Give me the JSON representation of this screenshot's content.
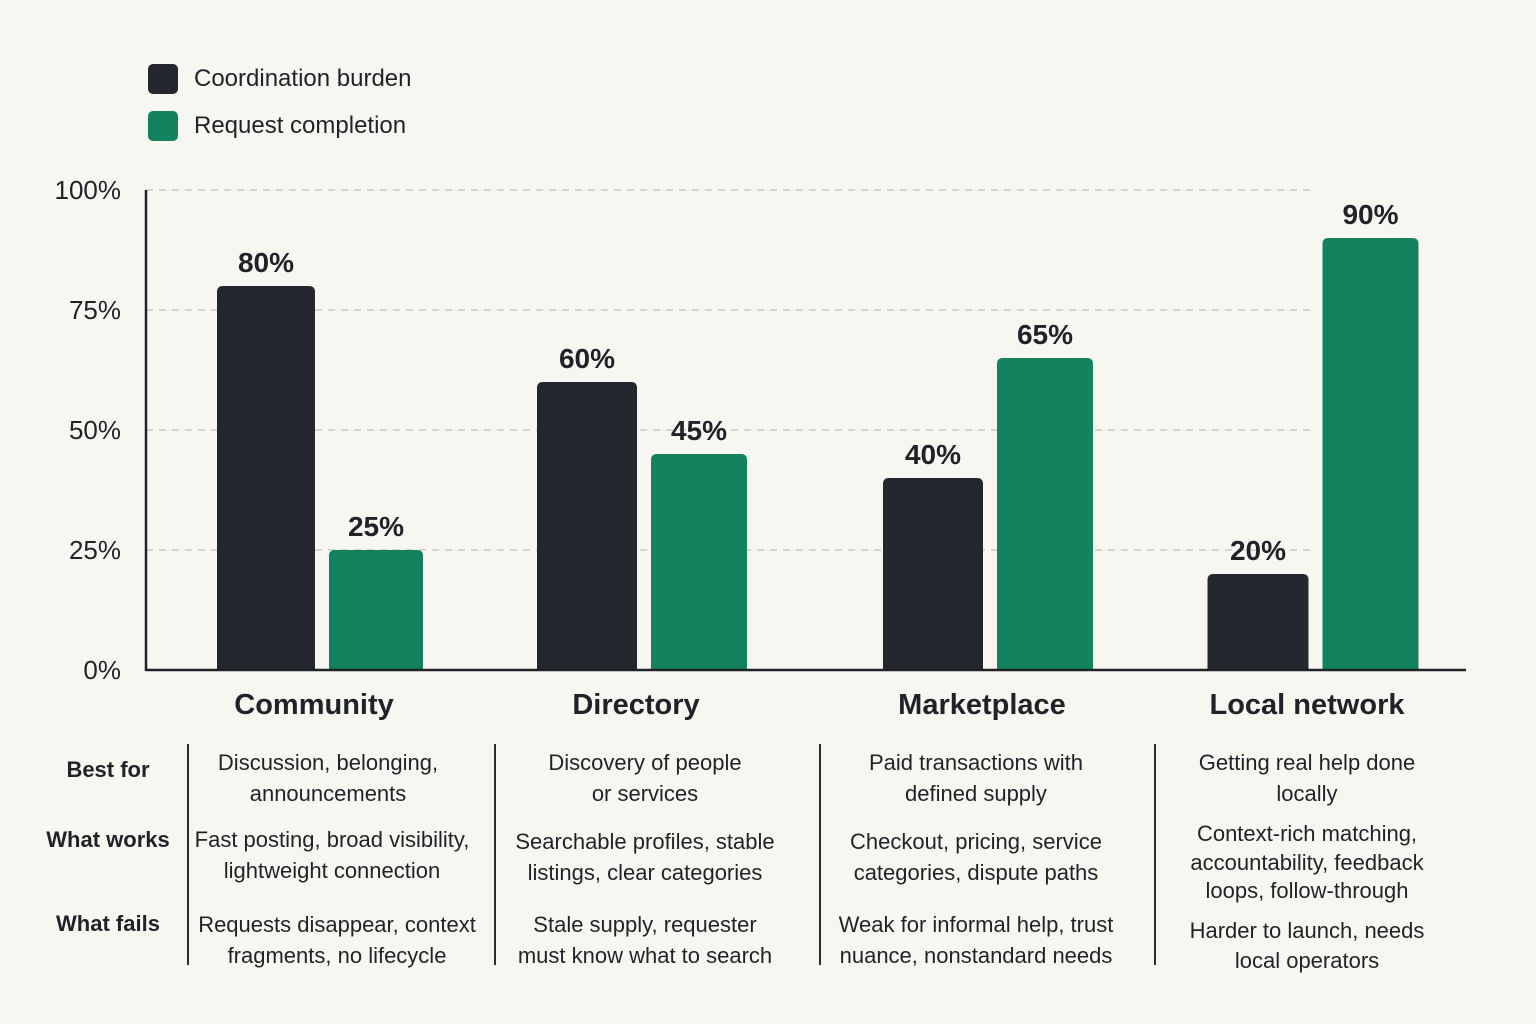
{
  "chart_data": {
    "type": "bar",
    "categories": [
      "Community",
      "Directory",
      "Marketplace",
      "Local network"
    ],
    "series": [
      {
        "name": "Coordination burden",
        "color": "#24282e",
        "values": [
          80,
          60,
          40,
          20
        ]
      },
      {
        "name": "Request completion",
        "color": "#12825f",
        "values": [
          25,
          45,
          65,
          90
        ]
      }
    ],
    "value_labels": [
      [
        "80%",
        "60%",
        "40%",
        "20%"
      ],
      [
        "25%",
        "45%",
        "65%",
        "90%"
      ]
    ],
    "y_ticks": [
      "0%",
      "25%",
      "50%",
      "75%",
      "100%"
    ],
    "ylim": [
      0,
      100
    ],
    "grid": true,
    "legend_position": "top-left",
    "title": "",
    "xlabel": "",
    "ylabel": ""
  },
  "table": {
    "row_labels": [
      "Best for",
      "What works",
      "What fails"
    ],
    "columns": [
      {
        "best_for": "Discussion, belonging,\nannouncements",
        "what_works": "Fast posting, broad visibility,\nlightweight connection",
        "what_fails": "Requests disappear, context\nfragments, no lifecycle"
      },
      {
        "best_for": "Discovery of people\nor services",
        "what_works": "Searchable profiles, stable\nlistings, clear categories",
        "what_fails": "Stale supply, requester\nmust know what to search"
      },
      {
        "best_for": "Paid transactions with\ndefined supply",
        "what_works": "Checkout, pricing, service\ncategories, dispute paths",
        "what_fails": "Weak for informal help, trust\nnuance, nonstandard needs"
      },
      {
        "best_for": "Getting real help done\nlocally",
        "what_works": "Context-rich matching,\naccountability, feedback\nloops, follow-through",
        "what_fails": "Harder to launch, needs\nlocal operators"
      }
    ]
  }
}
